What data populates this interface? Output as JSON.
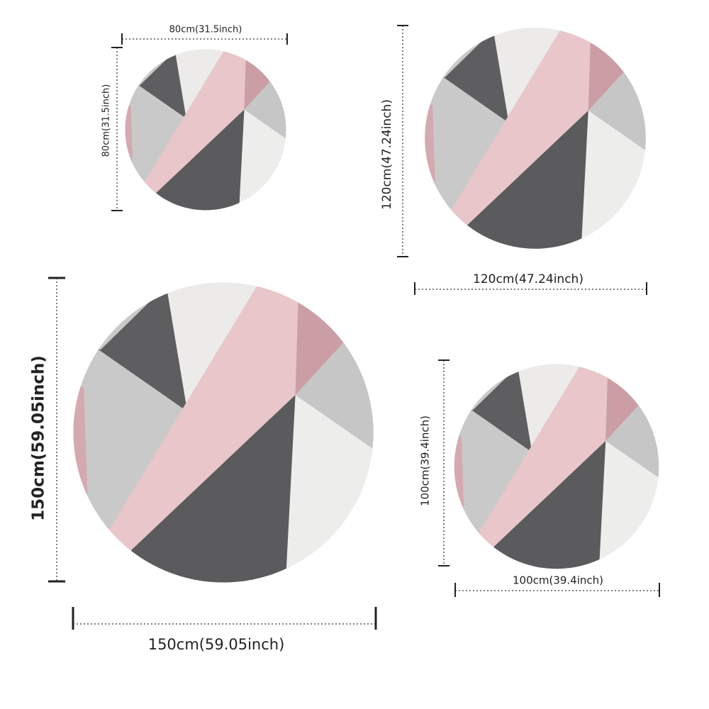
{
  "rugs": [
    {
      "width_label": "80cm(31.5inch)",
      "height_label": "80cm(31.5inch)"
    },
    {
      "width_label": "120cm(47.24inch)",
      "height_label": "120cm(47.24inch)"
    },
    {
      "width_label": "150cm(59.05inch)",
      "height_label": "150cm(59.05inch)"
    },
    {
      "width_label": "100cm(39.4inch)",
      "height_label": "100cm(39.4inch)"
    }
  ]
}
